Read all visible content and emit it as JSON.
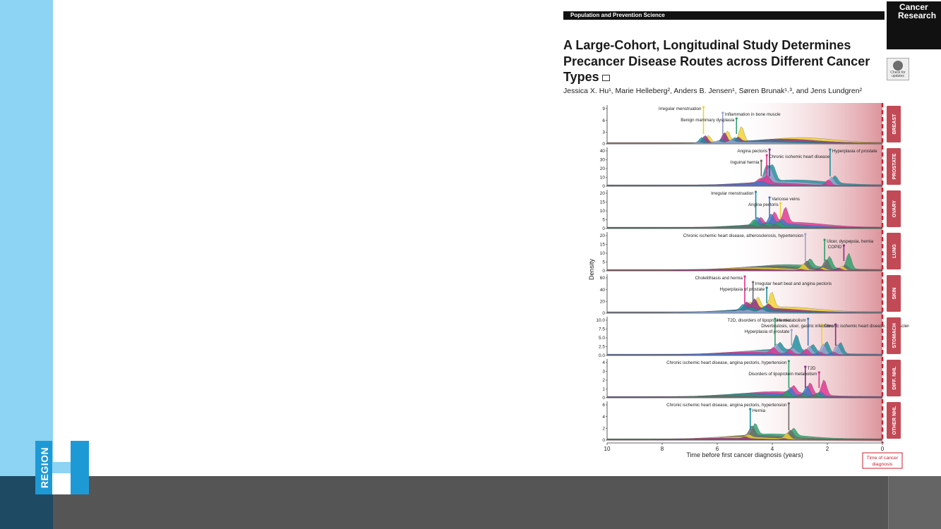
{
  "section_label": "Population and Prevention Science",
  "journal": {
    "line1": "Cancer",
    "line2": "Research"
  },
  "check_updates": "Check for updates",
  "title": "A Large-Cohort, Longitudinal Study Determines Precancer Disease Routes across Different Cancer Types",
  "authors": "Jessica X. Hu¹, Marie Helleberg², Anders B. Jensen¹, Søren Brunak¹˒³, and Jens Lundgren²",
  "logo": {
    "text": "REGION",
    "colors": {
      "mark": "#1d9ad6",
      "mark_light": "#8dd3f3"
    }
  },
  "colors": {
    "sidebar": "#8dd3f3",
    "footer": "#555555",
    "footer_left": "#1e4a63",
    "accent_red": "#c8202f"
  },
  "chart_data": {
    "type": "area",
    "xlabel": "Time before first cancer diagnosis (years)",
    "ylabel": "Density",
    "xlim": [
      10,
      0
    ],
    "x_ticks": [
      "10",
      "8",
      "6",
      "4",
      "2",
      "0"
    ],
    "end_label": "Time of cancer diagnosis",
    "panels": [
      {
        "name": "BREAST",
        "y_ticks": [
          "0",
          "3",
          "6",
          "9"
        ],
        "annotations": [
          {
            "text": "Irregular menstruation",
            "x": 6.5
          },
          {
            "text": "Inflammation in bone muscle",
            "x": 5.8
          },
          {
            "text": "Benign mammary dysplasia",
            "x": 5.3
          }
        ]
      },
      {
        "name": "PROSTATE",
        "y_ticks": [
          "0",
          "10",
          "20",
          "30",
          "40"
        ],
        "annotations": [
          {
            "text": "Angina pectoris",
            "x": 4.1
          },
          {
            "text": "Chronic ischemic heart disease",
            "x": 4.2
          },
          {
            "text": "Inguinal hernia",
            "x": 4.4
          },
          {
            "text": "Hyperplasia of prostate",
            "x": 1.9
          }
        ]
      },
      {
        "name": "OVARY",
        "y_ticks": [
          "0",
          "5",
          "10",
          "15",
          "20"
        ],
        "annotations": [
          {
            "text": "Irregular menstruation",
            "x": 4.6
          },
          {
            "text": "Varicose veins",
            "x": 4.1
          },
          {
            "text": "Angina pectoris",
            "x": 3.7
          }
        ]
      },
      {
        "name": "LUNG",
        "y_ticks": [
          "0",
          "5",
          "10",
          "15",
          "20"
        ],
        "annotations": [
          {
            "text": "Chronic ischemic heart disease, atherosclerosis, hypertension",
            "x": 2.8
          },
          {
            "text": "Ulcer, dyspepsia, hernia",
            "x": 2.1
          },
          {
            "text": "COPID",
            "x": 1.4
          }
        ]
      },
      {
        "name": "SKIN",
        "y_ticks": [
          "0",
          "20",
          "40",
          "60"
        ],
        "annotations": [
          {
            "text": "Cholelithiasis and hernia",
            "x": 5.0
          },
          {
            "text": "Irregular heart beat and angina pectoris",
            "x": 4.7
          },
          {
            "text": "Hyperplasia of prostate",
            "x": 4.2
          }
        ]
      },
      {
        "name": "STOMACH",
        "y_ticks": [
          "0.0",
          "2.5",
          "5.0",
          "7.5",
          "10.0"
        ],
        "annotations": [
          {
            "text": "T2D, disorders of lipoprotein metabolism",
            "x": 2.7
          },
          {
            "text": "Chronic ischemic heart disease, atherosclerosis, acute myocardial infarction",
            "x": 2.2
          },
          {
            "text": "Hyperplasia of prostate",
            "x": 3.3
          },
          {
            "text": "Hernia",
            "x": 3.9
          },
          {
            "text": "Diverticulosis, ulcer, gastric infections",
            "x": 1.7
          }
        ]
      },
      {
        "name": "DIFF. NHL",
        "y_ticks": [
          "0",
          "1",
          "2",
          "3",
          "4"
        ],
        "annotations": [
          {
            "text": "Chronic ischemic heart disease, angina pectoris, hypertension",
            "x": 3.4
          },
          {
            "text": "T2D",
            "x": 2.8
          },
          {
            "text": "Disorders of lipoprotein metabolism",
            "x": 2.3
          }
        ]
      },
      {
        "name": "OTHER NHL",
        "y_ticks": [
          "0",
          "2",
          "4",
          "6"
        ],
        "annotations": [
          {
            "text": "Chronic ischemic heart disease, angina pectoris, hypertension",
            "x": 3.4
          },
          {
            "text": "Hernia",
            "x": 4.8
          }
        ]
      }
    ]
  }
}
